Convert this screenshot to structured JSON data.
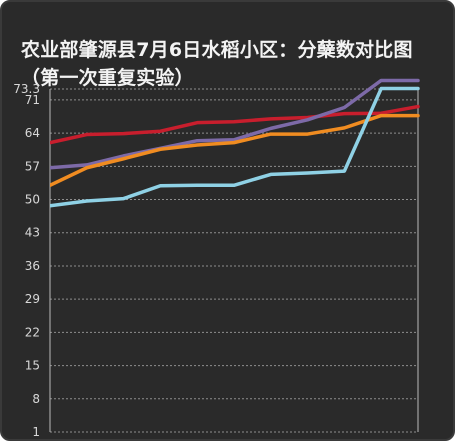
{
  "chart_data": {
    "type": "line",
    "title": "农业部肇源县7月6日水稻小区：分蘖数对比图（第一次重复实验）",
    "xlabel": "",
    "ylabel": "",
    "ylim": [
      1,
      73.3
    ],
    "yticks": [
      1,
      8,
      15,
      22,
      29,
      36,
      43,
      50,
      57,
      64,
      71,
      73.3
    ],
    "ytick_labels": [
      "1",
      "8",
      "15",
      "22",
      "29",
      "36",
      "43",
      "50",
      "57",
      "64",
      "71",
      "73.3"
    ],
    "x": [
      0,
      1,
      2,
      3,
      4,
      5,
      6,
      7,
      8,
      9,
      10
    ],
    "grid": true,
    "legend": "none",
    "series": [
      {
        "color": "#c81e2d",
        "values": [
          62.0,
          63.7,
          63.9,
          64.4,
          66.2,
          66.4,
          67.0,
          67.3,
          68.1,
          68.2,
          69.6
        ]
      },
      {
        "color": "#7d6aa8",
        "values": [
          56.7,
          57.3,
          59.2,
          60.8,
          62.4,
          62.6,
          65.0,
          66.8,
          69.4,
          75.1,
          75.1
        ]
      },
      {
        "color": "#f08c21",
        "values": [
          53.0,
          56.7,
          58.6,
          60.6,
          61.5,
          62.0,
          63.8,
          63.8,
          65.1,
          67.7,
          67.7
        ]
      },
      {
        "color": "#8fd1e5",
        "values": [
          48.7,
          49.7,
          50.2,
          52.9,
          53.0,
          53.0,
          55.3,
          55.6,
          56.0,
          73.4,
          73.4
        ]
      }
    ]
  }
}
